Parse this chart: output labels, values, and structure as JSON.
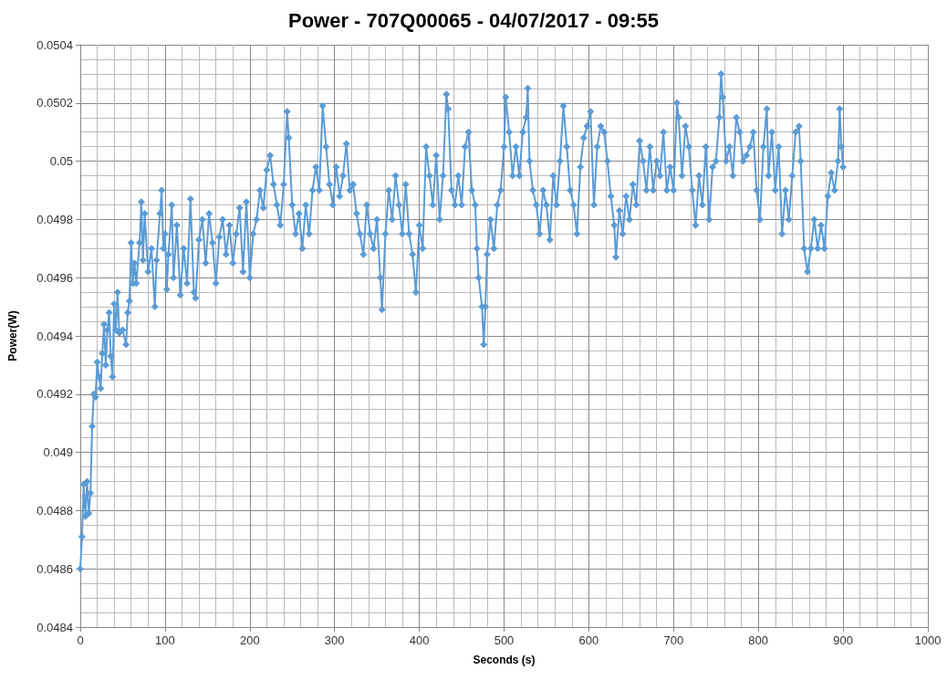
{
  "chart_data": {
    "type": "line",
    "title": "Power - 707Q00065 - 04/07/2017 - 09:55",
    "xlabel": "Seconds (s)",
    "ylabel": "Power(W)",
    "xlim": [
      0,
      1000
    ],
    "xticks": [
      0,
      100,
      200,
      300,
      400,
      500,
      600,
      700,
      800,
      900,
      1000
    ],
    "ylim": [
      0.0484,
      0.0504
    ],
    "yticks": [
      0.0484,
      0.0486,
      0.0488,
      0.049,
      0.0492,
      0.0494,
      0.0496,
      0.0498,
      0.05,
      0.0502,
      0.0504
    ],
    "grid": true,
    "marker": "diamond",
    "line_style": "solid",
    "series": [
      {
        "color": "#5b9bd5",
        "x": [
          0,
          2,
          4,
          6,
          8,
          10,
          12,
          14,
          16,
          18,
          20,
          22,
          24,
          26,
          28,
          30,
          32,
          34,
          36,
          38,
          40,
          42,
          44,
          46,
          50,
          54,
          56,
          58,
          60,
          62,
          64,
          66,
          70,
          72,
          74,
          76,
          80,
          84,
          88,
          90,
          94,
          96,
          98,
          100,
          102,
          104,
          108,
          110,
          114,
          118,
          122,
          126,
          130,
          134,
          136,
          140,
          144,
          148,
          152,
          156,
          160,
          164,
          168,
          172,
          176,
          180,
          184,
          188,
          192,
          196,
          200,
          204,
          208,
          212,
          216,
          220,
          224,
          228,
          232,
          236,
          240,
          244,
          246,
          250,
          254,
          258,
          262,
          266,
          270,
          274,
          278,
          282,
          286,
          290,
          294,
          298,
          302,
          306,
          310,
          314,
          318,
          322,
          326,
          330,
          334,
          338,
          342,
          346,
          350,
          354,
          356,
          360,
          364,
          368,
          372,
          376,
          380,
          384,
          388,
          392,
          396,
          400,
          404,
          408,
          412,
          416,
          420,
          424,
          428,
          432,
          434,
          438,
          442,
          446,
          450,
          454,
          458,
          462,
          466,
          468,
          470,
          474,
          476,
          478,
          480,
          484,
          488,
          492,
          496,
          500,
          502,
          506,
          510,
          514,
          518,
          522,
          526,
          528,
          530,
          534,
          538,
          542,
          546,
          550,
          554,
          558,
          562,
          566,
          570,
          574,
          578,
          582,
          586,
          590,
          594,
          598,
          602,
          606,
          610,
          614,
          618,
          622,
          626,
          630,
          632,
          636,
          640,
          644,
          648,
          652,
          656,
          660,
          664,
          668,
          672,
          676,
          680,
          684,
          688,
          692,
          696,
          700,
          704,
          706,
          710,
          714,
          718,
          722,
          726,
          730,
          734,
          738,
          742,
          746,
          750,
          754,
          756,
          758,
          762,
          766,
          770,
          774,
          778,
          782,
          786,
          790,
          794,
          798,
          802,
          806,
          810,
          812,
          816,
          820,
          824,
          828,
          832,
          836,
          840,
          844,
          848,
          850,
          854,
          858,
          862,
          866,
          870,
          874,
          878,
          882,
          886,
          890,
          894,
          896,
          898,
          900
        ],
        "values": [
          0.0486,
          0.04871,
          0.04889,
          0.04878,
          0.0489,
          0.04879,
          0.04886,
          0.04909,
          0.0492,
          0.04919,
          0.04931,
          0.04926,
          0.04922,
          0.04934,
          0.04944,
          0.0493,
          0.04942,
          0.04948,
          0.04933,
          0.04926,
          0.04951,
          0.04942,
          0.04955,
          0.04941,
          0.04942,
          0.04937,
          0.04948,
          0.04952,
          0.04972,
          0.04958,
          0.04965,
          0.04958,
          0.04972,
          0.04986,
          0.04966,
          0.04982,
          0.04962,
          0.0497,
          0.0495,
          0.04966,
          0.04982,
          0.0499,
          0.0497,
          0.04975,
          0.04956,
          0.04968,
          0.04985,
          0.0496,
          0.04978,
          0.04954,
          0.0497,
          0.04958,
          0.04987,
          0.04955,
          0.04953,
          0.04973,
          0.0498,
          0.04965,
          0.04982,
          0.04972,
          0.04958,
          0.04974,
          0.0498,
          0.04968,
          0.04978,
          0.04965,
          0.04975,
          0.04984,
          0.04962,
          0.04986,
          0.0496,
          0.04975,
          0.0498,
          0.0499,
          0.04984,
          0.04997,
          0.05002,
          0.04992,
          0.04985,
          0.04978,
          0.04992,
          0.05017,
          0.05008,
          0.04985,
          0.04975,
          0.04982,
          0.0497,
          0.04985,
          0.04975,
          0.0499,
          0.04998,
          0.0499,
          0.05019,
          0.05005,
          0.04992,
          0.04985,
          0.04998,
          0.04988,
          0.04995,
          0.05006,
          0.0499,
          0.04992,
          0.04982,
          0.04975,
          0.04968,
          0.04985,
          0.04975,
          0.0497,
          0.0498,
          0.0496,
          0.04949,
          0.04975,
          0.0499,
          0.0498,
          0.04995,
          0.04985,
          0.04975,
          0.04992,
          0.04975,
          0.04968,
          0.04955,
          0.04978,
          0.0497,
          0.05005,
          0.04995,
          0.04985,
          0.05002,
          0.0498,
          0.04995,
          0.05023,
          0.05018,
          0.0499,
          0.04985,
          0.04995,
          0.04985,
          0.05005,
          0.0501,
          0.0499,
          0.04985,
          0.0497,
          0.0496,
          0.0495,
          0.04937,
          0.0495,
          0.04968,
          0.0498,
          0.0497,
          0.04985,
          0.0499,
          0.05005,
          0.05022,
          0.0501,
          0.04995,
          0.05005,
          0.04995,
          0.0501,
          0.05015,
          0.05025,
          0.05,
          0.0499,
          0.04985,
          0.04975,
          0.0499,
          0.04985,
          0.04973,
          0.04995,
          0.04985,
          0.05,
          0.05019,
          0.05005,
          0.0499,
          0.04985,
          0.04975,
          0.04998,
          0.05008,
          0.05012,
          0.05017,
          0.04985,
          0.05005,
          0.05012,
          0.0501,
          0.05,
          0.04988,
          0.04978,
          0.04967,
          0.04983,
          0.04975,
          0.04988,
          0.0498,
          0.04992,
          0.04985,
          0.05007,
          0.05,
          0.0499,
          0.05005,
          0.0499,
          0.05,
          0.04995,
          0.0501,
          0.0499,
          0.04998,
          0.0499,
          0.0502,
          0.05015,
          0.04995,
          0.05012,
          0.05005,
          0.0499,
          0.04978,
          0.04995,
          0.04985,
          0.05005,
          0.0498,
          0.04998,
          0.05,
          0.05015,
          0.0503,
          0.05022,
          0.05,
          0.05005,
          0.04995,
          0.05015,
          0.0501,
          0.05,
          0.05002,
          0.05005,
          0.0501,
          0.0499,
          0.0498,
          0.05005,
          0.05018,
          0.04995,
          0.0501,
          0.0499,
          0.05005,
          0.04975,
          0.0499,
          0.0498,
          0.04995,
          0.0501,
          0.05012,
          0.05,
          0.0497,
          0.04962,
          0.0497,
          0.0498,
          0.0497,
          0.04978,
          0.0497,
          0.04988,
          0.04996,
          0.0499,
          0.05,
          0.05018,
          0.05005,
          0.04998
        ]
      }
    ]
  }
}
